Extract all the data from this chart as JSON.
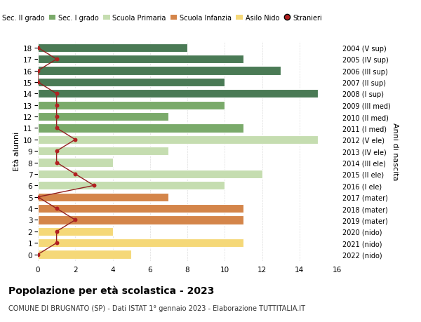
{
  "ages": [
    18,
    17,
    16,
    15,
    14,
    13,
    12,
    11,
    10,
    9,
    8,
    7,
    6,
    5,
    4,
    3,
    2,
    1,
    0
  ],
  "years": [
    "2004 (V sup)",
    "2005 (IV sup)",
    "2006 (III sup)",
    "2007 (II sup)",
    "2008 (I sup)",
    "2009 (III med)",
    "2010 (II med)",
    "2011 (I med)",
    "2012 (V ele)",
    "2013 (IV ele)",
    "2014 (III ele)",
    "2015 (II ele)",
    "2016 (I ele)",
    "2017 (mater)",
    "2018 (mater)",
    "2019 (mater)",
    "2020 (nido)",
    "2021 (nido)",
    "2022 (nido)"
  ],
  "values": [
    8,
    11,
    13,
    10,
    15,
    10,
    7,
    11,
    15,
    7,
    4,
    12,
    10,
    7,
    11,
    11,
    4,
    11,
    5
  ],
  "bar_colors": [
    "#4a7a55",
    "#4a7a55",
    "#4a7a55",
    "#4a7a55",
    "#4a7a55",
    "#7aaa6a",
    "#7aaa6a",
    "#7aaa6a",
    "#c5ddb0",
    "#c5ddb0",
    "#c5ddb0",
    "#c5ddb0",
    "#c5ddb0",
    "#d4854a",
    "#d4854a",
    "#d4854a",
    "#f5d878",
    "#f5d878",
    "#f5d878"
  ],
  "stranieri_values": [
    0,
    1,
    0,
    0,
    1,
    1,
    1,
    1,
    2,
    1,
    1,
    2,
    3,
    0,
    1,
    2,
    1,
    1,
    0
  ],
  "title": "Popolazione per età scolastica - 2023",
  "subtitle": "COMUNE DI BRUGNATO (SP) - Dati ISTAT 1° gennaio 2023 - Elaborazione TUTTITALIA.IT",
  "ylabel_left": "Età alunni",
  "ylabel_right": "Anni di nascita",
  "xlim": [
    0,
    16
  ],
  "xticks": [
    0,
    2,
    4,
    6,
    8,
    10,
    12,
    14,
    16
  ],
  "legend_labels": [
    "Sec. II grado",
    "Sec. I grado",
    "Scuola Primaria",
    "Scuola Infanzia",
    "Asilo Nido",
    "Stranieri"
  ],
  "legend_colors": [
    "#4a7a55",
    "#7aaa6a",
    "#c5ddb0",
    "#d4854a",
    "#f5d878",
    "#b22020"
  ],
  "bar_height": 0.75,
  "bg_color": "#ffffff",
  "grid_color": "#dddddd",
  "stranieri_line_color": "#922020",
  "stranieri_dot_color": "#b22020"
}
